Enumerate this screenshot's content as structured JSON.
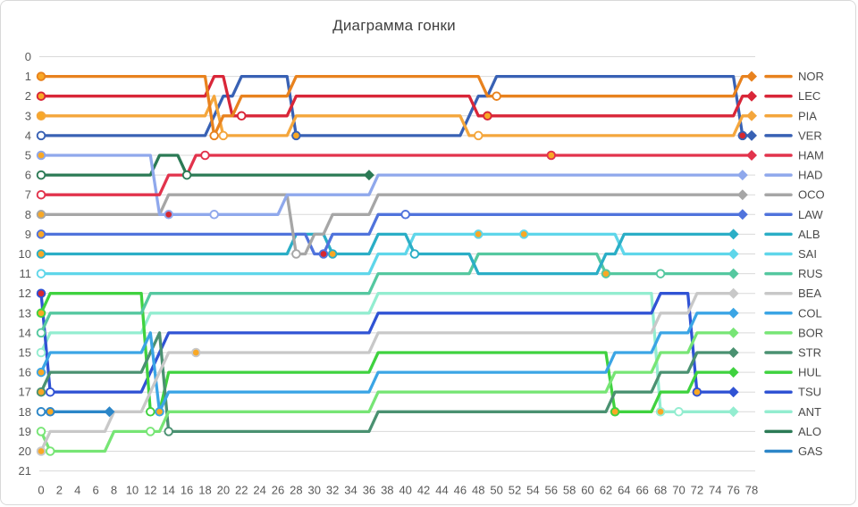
{
  "panel": {
    "title": "Диаграмма гонки"
  },
  "chart_data": {
    "type": "line",
    "title": "Диаграмма гонки",
    "subtitle": "",
    "xlabel": "",
    "ylabel": "",
    "x_axis": {
      "min": 0,
      "max": 78,
      "tick_step": 2
    },
    "y_axis": {
      "min": 0,
      "max": 21,
      "tick_step": 1,
      "inverted": true,
      "meaning": "race position"
    },
    "grid": true,
    "legend_position": "right",
    "axis_text_color": "#595959",
    "grid_color": "#d9d9d9",
    "tyre_marker_colors": {
      "orange": "#F9A825",
      "white": "#FFFFFF",
      "red": "#D7282F"
    },
    "series": [
      {
        "code": "NOR",
        "color": "#E8821E",
        "points": [
          [
            0,
            1
          ],
          [
            19,
            4
          ],
          [
            20,
            3
          ],
          [
            22,
            2
          ],
          [
            28,
            1
          ],
          [
            49,
            2
          ],
          [
            77,
            1
          ]
        ],
        "end_lap": 78,
        "markers": [
          [
            0,
            1,
            "orange"
          ],
          [
            19,
            4,
            "white"
          ],
          [
            50,
            2,
            "white"
          ]
        ]
      },
      {
        "code": "LEC",
        "color": "#D92638",
        "points": [
          [
            0,
            2
          ],
          [
            19,
            1
          ],
          [
            21,
            3
          ],
          [
            28,
            2
          ],
          [
            48,
            3
          ],
          [
            77,
            2
          ]
        ],
        "end_lap": 78,
        "markers": [
          [
            0,
            2,
            "orange"
          ],
          [
            22,
            3,
            "white"
          ],
          [
            49,
            3,
            "orange"
          ]
        ]
      },
      {
        "code": "PIA",
        "color": "#F4A63C",
        "points": [
          [
            0,
            3
          ],
          [
            19,
            2
          ],
          [
            20,
            4
          ],
          [
            28,
            3
          ],
          [
            47,
            4
          ],
          [
            77,
            3
          ]
        ],
        "end_lap": 78,
        "markers": [
          [
            0,
            3,
            "orange"
          ],
          [
            20,
            4,
            "white"
          ],
          [
            48,
            4,
            "white"
          ]
        ]
      },
      {
        "code": "VER",
        "color": "#3861B4",
        "points": [
          [
            0,
            4
          ],
          [
            19,
            3
          ],
          [
            20,
            2
          ],
          [
            22,
            1
          ],
          [
            28,
            4
          ],
          [
            47,
            3
          ],
          [
            48,
            2
          ],
          [
            50,
            1
          ],
          [
            77,
            4
          ]
        ],
        "end_lap": 78,
        "markers": [
          [
            0,
            4,
            "white"
          ],
          [
            28,
            4,
            "orange"
          ],
          [
            77,
            4,
            "red"
          ]
        ]
      },
      {
        "code": "HAM",
        "color": "#E2334C",
        "points": [
          [
            0,
            7
          ],
          [
            14,
            6
          ],
          [
            17,
            5
          ]
        ],
        "end_lap": 78,
        "markers": [
          [
            0,
            7,
            "white"
          ],
          [
            18,
            5,
            "white"
          ],
          [
            56,
            5,
            "orange"
          ]
        ]
      },
      {
        "code": "HAD",
        "color": "#8FA8EC",
        "points": [
          [
            0,
            5
          ],
          [
            13,
            8
          ],
          [
            27,
            7
          ],
          [
            37,
            6
          ]
        ],
        "end_lap": 77,
        "markers": [
          [
            0,
            5,
            "orange"
          ],
          [
            14,
            8,
            "red"
          ],
          [
            19,
            8,
            "white"
          ]
        ]
      },
      {
        "code": "OCO",
        "color": "#A6A6A6",
        "points": [
          [
            0,
            8
          ],
          [
            14,
            7
          ],
          [
            28,
            10
          ],
          [
            30,
            9
          ],
          [
            32,
            8
          ],
          [
            37,
            7
          ]
        ],
        "end_lap": 77,
        "markers": [
          [
            0,
            8,
            "orange"
          ],
          [
            28,
            10,
            "white"
          ]
        ]
      },
      {
        "code": "LAW",
        "color": "#5073DC",
        "points": [
          [
            0,
            9
          ],
          [
            30,
            10
          ],
          [
            32,
            9
          ],
          [
            37,
            8
          ]
        ],
        "end_lap": 77,
        "markers": [
          [
            0,
            9,
            "orange"
          ],
          [
            31,
            10,
            "red"
          ],
          [
            40,
            8,
            "white"
          ]
        ]
      },
      {
        "code": "ALB",
        "color": "#2BAEC6",
        "points": [
          [
            0,
            10
          ],
          [
            28,
            9
          ],
          [
            32,
            10
          ],
          [
            37,
            9
          ],
          [
            41,
            10
          ],
          [
            48,
            11
          ],
          [
            62,
            10
          ],
          [
            64,
            9
          ]
        ],
        "end_lap": 76,
        "markers": [
          [
            0,
            10,
            "orange"
          ],
          [
            32,
            10,
            "orange"
          ],
          [
            41,
            10,
            "white"
          ]
        ]
      },
      {
        "code": "SAI",
        "color": "#5FD6EA",
        "points": [
          [
            0,
            11
          ],
          [
            37,
            10
          ],
          [
            41,
            9
          ],
          [
            64,
            10
          ]
        ],
        "end_lap": 76,
        "markers": [
          [
            0,
            11,
            "white"
          ],
          [
            48,
            9,
            "orange"
          ],
          [
            53,
            9,
            "orange"
          ]
        ]
      },
      {
        "code": "RUS",
        "color": "#55C8A0",
        "points": [
          [
            0,
            14
          ],
          [
            1,
            13
          ],
          [
            12,
            12
          ],
          [
            37,
            11
          ],
          [
            48,
            10
          ],
          [
            62,
            11
          ]
        ],
        "end_lap": 76,
        "markers": [
          [
            0,
            14,
            "white"
          ],
          [
            62,
            11,
            "orange"
          ],
          [
            68,
            11,
            "white"
          ]
        ]
      },
      {
        "code": "BEA",
        "color": "#C8C8C8",
        "points": [
          [
            0,
            20
          ],
          [
            1,
            19
          ],
          [
            8,
            18
          ],
          [
            12,
            17
          ],
          [
            13,
            16
          ],
          [
            14,
            15
          ],
          [
            37,
            14
          ],
          [
            68,
            13
          ],
          [
            72,
            12
          ]
        ],
        "end_lap": 76,
        "markers": [
          [
            0,
            20,
            "orange"
          ],
          [
            17,
            15,
            "orange"
          ]
        ]
      },
      {
        "code": "COL",
        "color": "#3BA5E5",
        "points": [
          [
            0,
            16
          ],
          [
            1,
            15
          ],
          [
            12,
            14
          ],
          [
            13,
            18
          ],
          [
            14,
            17
          ],
          [
            37,
            16
          ],
          [
            63,
            15
          ],
          [
            68,
            14
          ],
          [
            72,
            13
          ]
        ],
        "end_lap": 76,
        "markers": [
          [
            0,
            16,
            "orange"
          ],
          [
            13,
            18,
            "orange"
          ]
        ]
      },
      {
        "code": "BOR",
        "color": "#77E575",
        "points": [
          [
            0,
            19
          ],
          [
            1,
            20
          ],
          [
            8,
            19
          ],
          [
            14,
            18
          ],
          [
            37,
            17
          ],
          [
            63,
            16
          ],
          [
            68,
            15
          ],
          [
            72,
            14
          ]
        ],
        "end_lap": 76,
        "markers": [
          [
            0,
            19,
            "white"
          ],
          [
            1,
            20,
            "white"
          ],
          [
            12,
            19,
            "white"
          ]
        ]
      },
      {
        "code": "STR",
        "color": "#4A9171",
        "points": [
          [
            0,
            17
          ],
          [
            1,
            16
          ],
          [
            12,
            15
          ],
          [
            13,
            14
          ],
          [
            14,
            19
          ],
          [
            37,
            18
          ],
          [
            63,
            17
          ],
          [
            68,
            16
          ],
          [
            72,
            15
          ]
        ],
        "end_lap": 76,
        "markers": [
          [
            0,
            17,
            "orange"
          ],
          [
            14,
            19,
            "white"
          ]
        ]
      },
      {
        "code": "HUL",
        "color": "#3FD23F",
        "points": [
          [
            0,
            13
          ],
          [
            1,
            12
          ],
          [
            12,
            18
          ],
          [
            14,
            16
          ],
          [
            37,
            15
          ],
          [
            63,
            18
          ],
          [
            68,
            17
          ],
          [
            72,
            16
          ]
        ],
        "end_lap": 76,
        "markers": [
          [
            0,
            13,
            "orange"
          ],
          [
            12,
            18,
            "white"
          ],
          [
            63,
            18,
            "orange"
          ]
        ]
      },
      {
        "code": "TSU",
        "color": "#3053D4",
        "points": [
          [
            0,
            12
          ],
          [
            1,
            17
          ],
          [
            12,
            16
          ],
          [
            13,
            15
          ],
          [
            14,
            14
          ],
          [
            37,
            13
          ],
          [
            68,
            12
          ],
          [
            72,
            17
          ]
        ],
        "end_lap": 76,
        "markers": [
          [
            0,
            12,
            "red"
          ],
          [
            1,
            17,
            "white"
          ],
          [
            72,
            17,
            "orange"
          ]
        ]
      },
      {
        "code": "ANT",
        "color": "#93EDD0",
        "points": [
          [
            0,
            15
          ],
          [
            1,
            14
          ],
          [
            12,
            13
          ],
          [
            37,
            12
          ],
          [
            68,
            18
          ]
        ],
        "end_lap": 76,
        "markers": [
          [
            0,
            15,
            "white"
          ],
          [
            68,
            18,
            "orange"
          ],
          [
            70,
            18,
            "white"
          ]
        ]
      },
      {
        "code": "ALO",
        "color": "#2B7A55",
        "points": [
          [
            0,
            6
          ],
          [
            13,
            5
          ],
          [
            16,
            6
          ]
        ],
        "end_lap": 36,
        "markers": [
          [
            0,
            6,
            "white"
          ],
          [
            16,
            6,
            "white"
          ]
        ]
      },
      {
        "code": "GAS",
        "color": "#2C86C8",
        "points": [
          [
            0,
            18
          ]
        ],
        "end_lap": 7.5,
        "markers": [
          [
            0,
            18,
            "white"
          ],
          [
            1,
            18,
            "orange"
          ]
        ]
      }
    ]
  }
}
